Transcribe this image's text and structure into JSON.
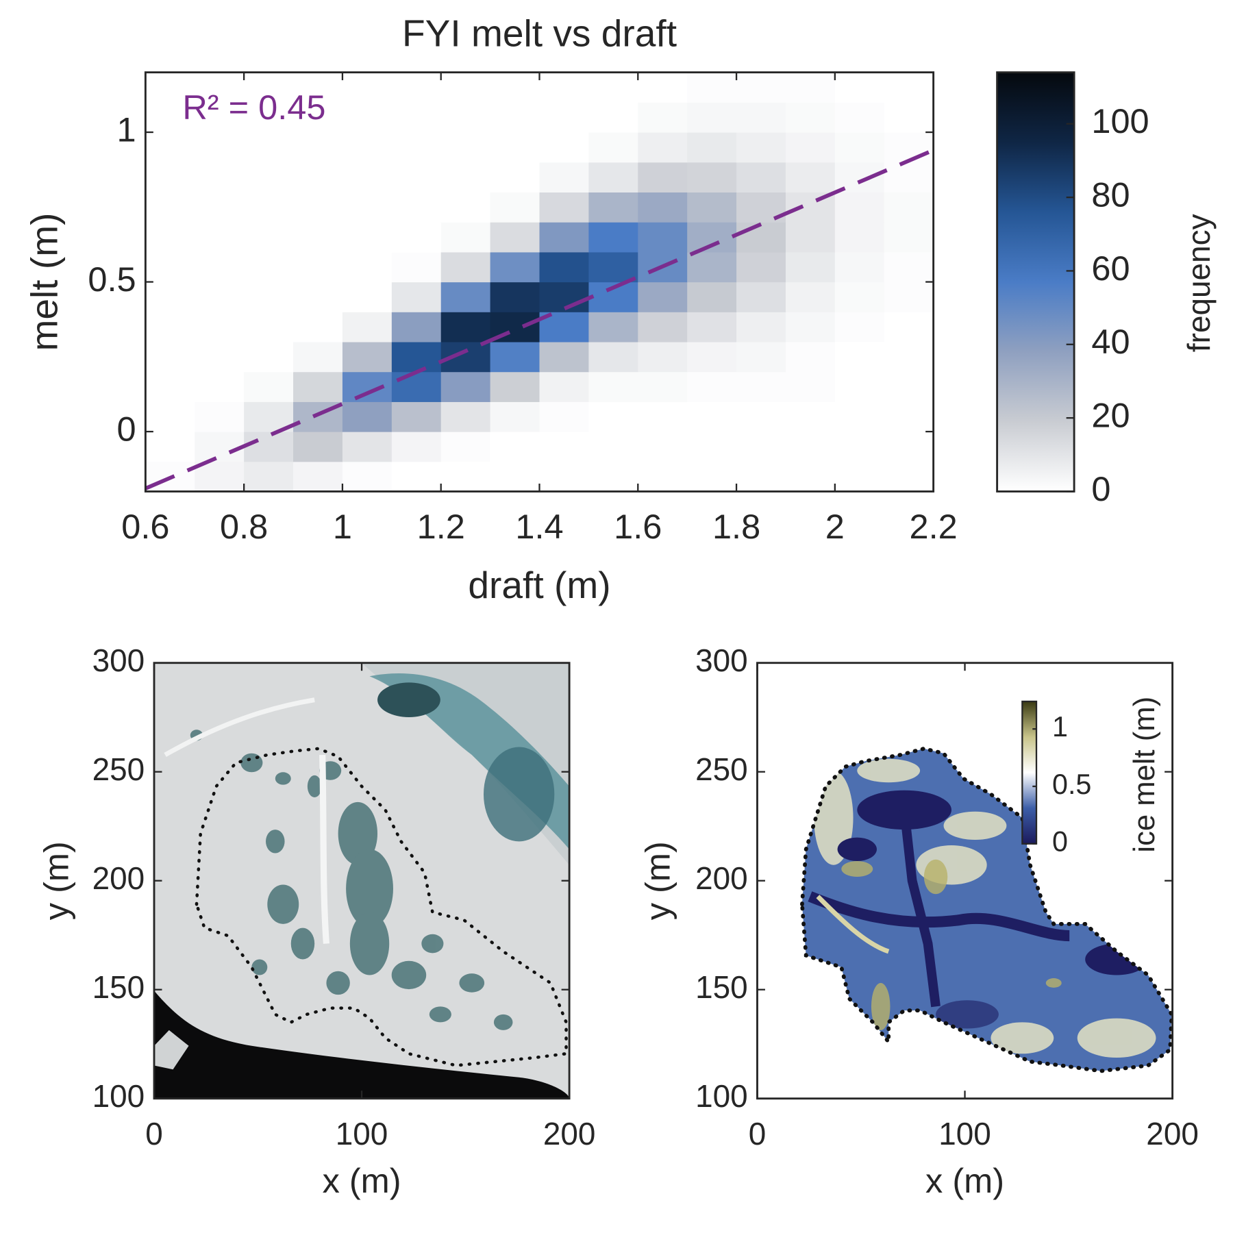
{
  "chart_data": [
    {
      "type": "heatmap",
      "title": "FYI melt vs draft",
      "xlabel": "draft (m)",
      "ylabel": "melt (m)",
      "xlim": [
        0.6,
        2.2
      ],
      "ylim": [
        -0.2,
        1.2
      ],
      "xticks": [
        0.6,
        0.8,
        1,
        1.2,
        1.4,
        1.6,
        1.8,
        2,
        2.2
      ],
      "yticks": [
        0,
        0.5,
        1
      ],
      "xbins": [
        0.6,
        0.7,
        0.8,
        0.9,
        1.0,
        1.1,
        1.2,
        1.3,
        1.4,
        1.5,
        1.6,
        1.7,
        1.8,
        1.9,
        2.0,
        2.1,
        2.2
      ],
      "ybins": [
        -0.2,
        -0.1,
        0.0,
        0.1,
        0.2,
        0.3,
        0.4,
        0.5,
        0.6,
        0.7,
        0.8,
        0.9,
        1.0,
        1.1,
        1.2
      ],
      "counts": [
        [
          1,
          4,
          7,
          4,
          1,
          0,
          0,
          0,
          0,
          0,
          0,
          0,
          0,
          0,
          0,
          0
        ],
        [
          0,
          3,
          12,
          19,
          10,
          4,
          1,
          0,
          0,
          0,
          0,
          0,
          0,
          0,
          0,
          0
        ],
        [
          0,
          1,
          8,
          28,
          38,
          24,
          10,
          3,
          1,
          0,
          0,
          0,
          0,
          0,
          0,
          0
        ],
        [
          0,
          0,
          2,
          15,
          51,
          65,
          40,
          18,
          5,
          2,
          2,
          1,
          1,
          1,
          0,
          0
        ],
        [
          0,
          0,
          0,
          3,
          25,
          76,
          85,
          55,
          23,
          9,
          6,
          4,
          3,
          1,
          0,
          0
        ],
        [
          0,
          0,
          0,
          0,
          5,
          39,
          92,
          94,
          57,
          29,
          17,
          11,
          6,
          3,
          1,
          0
        ],
        [
          0,
          0,
          0,
          0,
          0,
          9,
          49,
          89,
          86,
          57,
          34,
          20,
          12,
          5,
          2,
          1
        ],
        [
          0,
          0,
          0,
          0,
          0,
          1,
          13,
          47,
          78,
          71,
          49,
          29,
          17,
          8,
          3,
          1
        ],
        [
          0,
          0,
          0,
          0,
          0,
          0,
          2,
          13,
          42,
          57,
          49,
          32,
          19,
          10,
          4,
          2
        ],
        [
          0,
          0,
          0,
          0,
          0,
          0,
          0,
          2,
          14,
          29,
          34,
          26,
          17,
          10,
          4,
          2
        ],
        [
          0,
          0,
          0,
          0,
          0,
          0,
          0,
          0,
          3,
          9,
          17,
          16,
          12,
          7,
          3,
          1
        ],
        [
          0,
          0,
          0,
          0,
          0,
          0,
          0,
          0,
          0,
          2,
          6,
          8,
          6,
          4,
          2,
          1
        ],
        [
          0,
          0,
          0,
          0,
          0,
          0,
          0,
          0,
          0,
          0,
          2,
          3,
          3,
          2,
          1,
          0
        ],
        [
          0,
          0,
          0,
          0,
          0,
          0,
          0,
          0,
          0,
          0,
          0,
          1,
          1,
          1,
          0,
          0
        ]
      ],
      "fit": {
        "x": [
          0.6,
          2.2
        ],
        "y": [
          -0.19,
          0.94
        ],
        "color": "#7b2d8e"
      },
      "annotation": "R² = 0.45",
      "colorbar": {
        "label": "frequency",
        "clim": [
          0,
          114
        ],
        "ticks": [
          0,
          20,
          40,
          60,
          80,
          100
        ],
        "colormap": [
          "#ffffff",
          "#c9ccd2",
          "#8fa0c0",
          "#4a7cc6",
          "#255695",
          "#0f2645",
          "#05090e"
        ]
      }
    },
    {
      "type": "image",
      "xlabel": "x (m)",
      "ylabel": "y (m)",
      "xlim": [
        0,
        200
      ],
      "ylim": [
        100,
        300
      ],
      "xticks": [
        0,
        100,
        200
      ],
      "yticks": [
        100,
        150,
        200,
        250,
        300
      ]
    },
    {
      "type": "image",
      "xlabel": "x (m)",
      "ylabel": "y (m)",
      "xlim": [
        0,
        200
      ],
      "ylim": [
        100,
        300
      ],
      "xticks": [
        0,
        100,
        200
      ],
      "yticks": [
        100,
        150,
        200,
        250,
        300
      ],
      "colorbar": {
        "label": "ice melt (m)",
        "clim": [
          0,
          1.24
        ],
        "ticks": [
          0,
          0.5,
          1
        ],
        "colormap": [
          "#1b1a5c",
          "#3c5ea8",
          "#ffffff",
          "#c8c48a",
          "#3a3a12"
        ]
      }
    }
  ]
}
